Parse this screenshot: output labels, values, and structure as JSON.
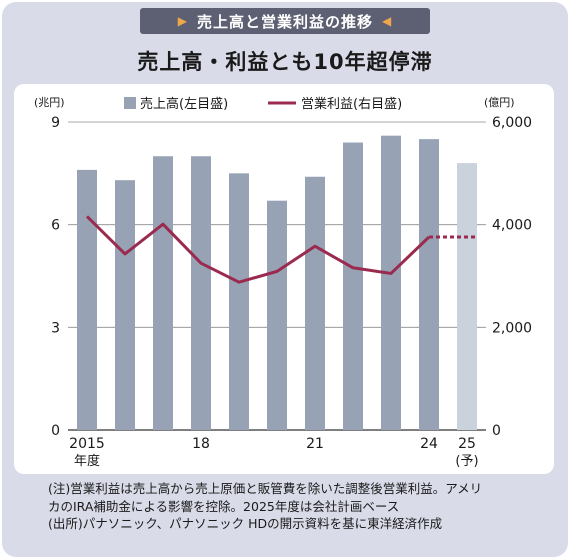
{
  "header": {
    "banner": "売上高と営業利益の推移",
    "title": "売上高・利益とも10年超停滞"
  },
  "chart_data": {
    "type": "bar",
    "x": [
      "2015",
      "2016",
      "2017",
      "2018",
      "2019",
      "2020",
      "2021",
      "2022",
      "2023",
      "2024",
      "2025"
    ],
    "x_tick_labels": [
      {
        "index": 0,
        "line1": "2015",
        "line2": "年度"
      },
      {
        "index": 3,
        "line1": "18",
        "line2": ""
      },
      {
        "index": 6,
        "line1": "21",
        "line2": ""
      },
      {
        "index": 9,
        "line1": "24",
        "line2": ""
      },
      {
        "index": 10,
        "line1": "25",
        "line2": "(予)"
      }
    ],
    "y_left": {
      "unit": "(兆円)",
      "min": 0,
      "max": 9,
      "ticks": [
        0,
        3,
        6,
        9
      ],
      "tick_labels": [
        "0",
        "3",
        "6",
        "9"
      ]
    },
    "y_right": {
      "unit": "(億円)",
      "min": 0,
      "max": 6000,
      "ticks": [
        0,
        2000,
        4000,
        6000
      ],
      "tick_labels": [
        "0",
        "2,000",
        "4,000",
        "6,000"
      ]
    },
    "grid": true,
    "legend_position": "top",
    "series": [
      {
        "name": "売上高(左目盛)",
        "type": "bar",
        "axis": "left",
        "color": "#97a3b5",
        "forecast_color": "#cad3dc",
        "values": [
          7.6,
          7.3,
          8.0,
          8.0,
          7.5,
          6.7,
          7.4,
          8.4,
          8.6,
          8.5,
          7.8
        ]
      },
      {
        "name": "営業利益(右目盛)",
        "type": "line",
        "axis": "right",
        "color": "#9b2a4f",
        "forecast_from_index": 9,
        "values": [
          4160,
          3430,
          4010,
          3250,
          2880,
          3090,
          3580,
          3160,
          3050,
          3760,
          3760
        ]
      }
    ]
  },
  "notes": [
    "(注)営業利益は売上高から売上原価と販管費を除いた調整後営業利益。アメリ",
    "カのIRA補助金による影響を控除。2025年度は会社計画ベース",
    "(出所)パナソニック、パナソニック HDの開示資料を基に東洋経済作成"
  ]
}
